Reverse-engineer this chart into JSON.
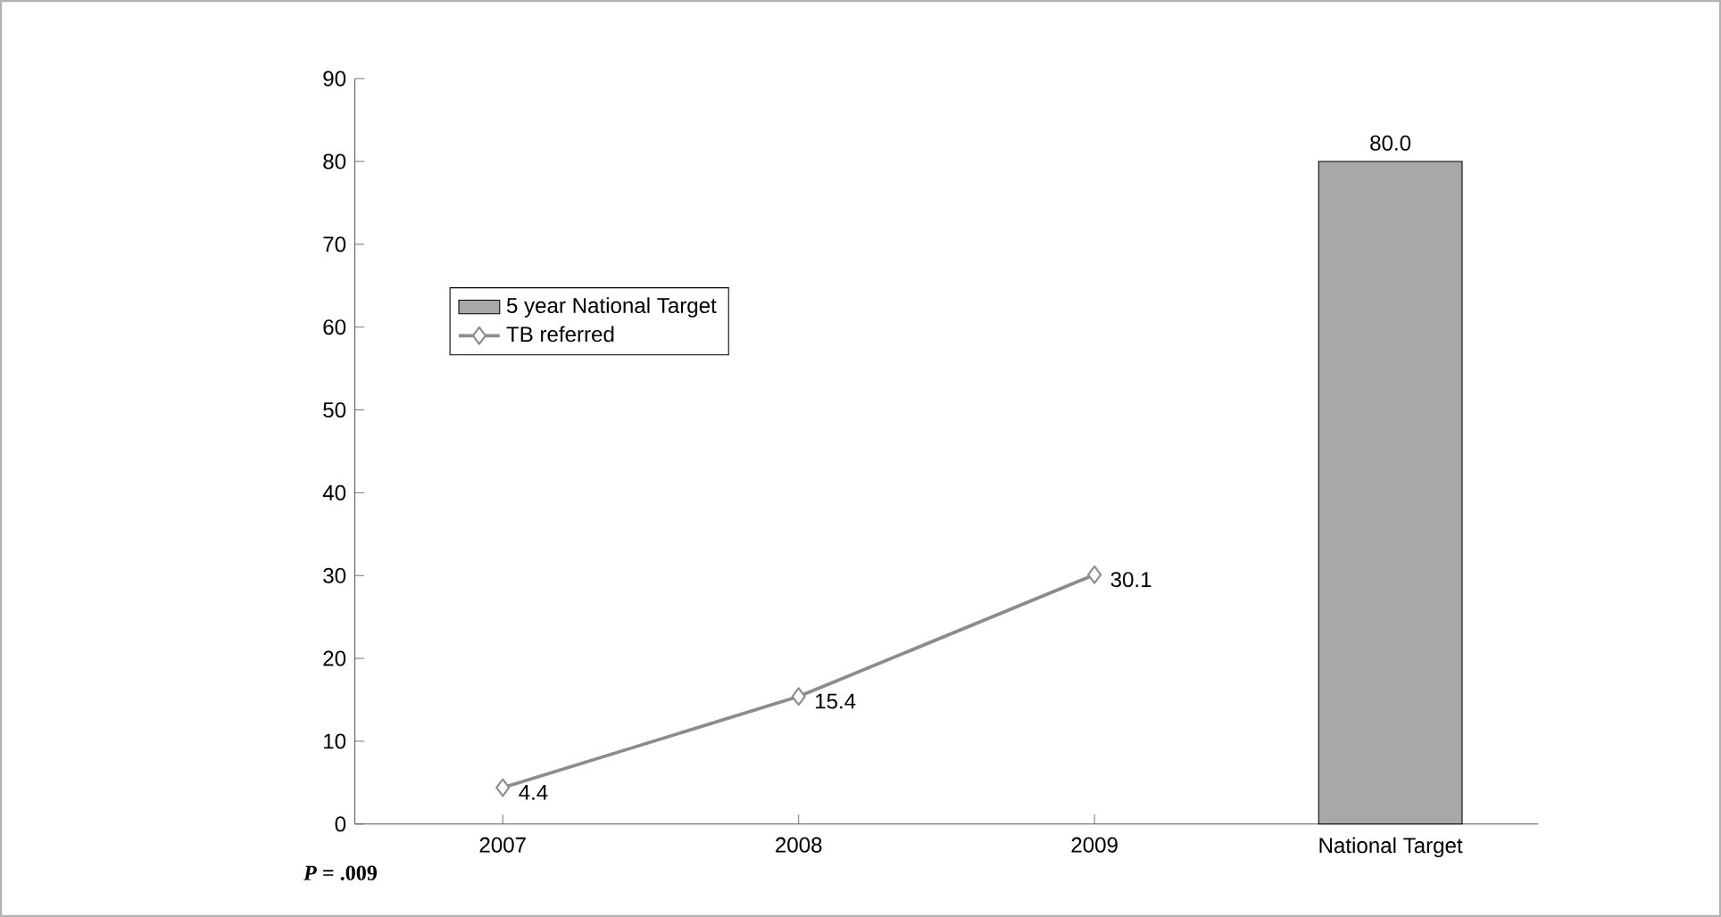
{
  "chart_data": {
    "type": "line",
    "categories": [
      "2007",
      "2008",
      "2009",
      "National Target"
    ],
    "series": [
      {
        "name": "5 year National Target",
        "type": "bar",
        "color": "#a8a8a8",
        "values": [
          null,
          null,
          null,
          80.0
        ],
        "value_labels": [
          null,
          null,
          null,
          "80.0"
        ]
      },
      {
        "name": "TB referred",
        "color": "#8c8c8c",
        "values": [
          4.4,
          15.4,
          30.1,
          null
        ],
        "value_labels": [
          "4.4",
          "15.4",
          "30.1",
          null
        ],
        "marker": "diamond"
      }
    ],
    "ylim": [
      0,
      90
    ],
    "yticks": [
      0,
      10,
      20,
      30,
      40,
      50,
      60,
      70,
      80,
      90
    ],
    "legend": "left",
    "grid": false,
    "annotations": [
      "*P* = .009"
    ]
  }
}
